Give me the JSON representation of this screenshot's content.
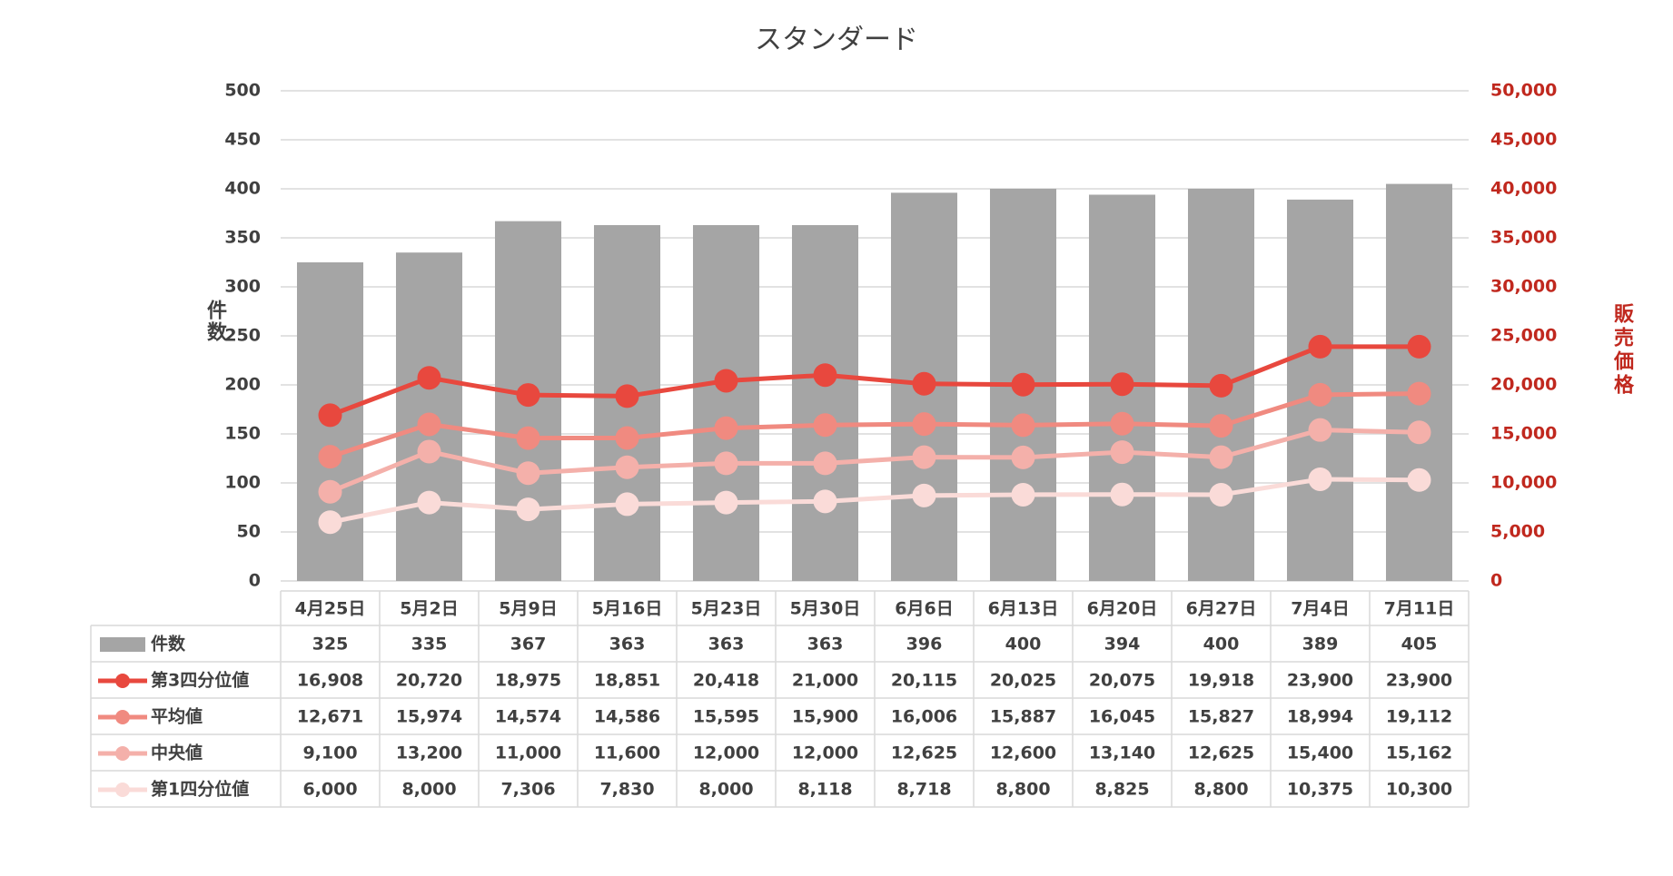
{
  "chart_data": {
    "type": "bar",
    "title": "スタンダード",
    "y_label": "件数",
    "y2_label": "販売価格",
    "categories": [
      "4月25日",
      "5月2日",
      "5月9日",
      "5月16日",
      "5月23日",
      "5月30日",
      "6月6日",
      "6月13日",
      "6月20日",
      "6月27日",
      "7月4日",
      "7月11日"
    ],
    "series": [
      {
        "name": "件数",
        "type": "bar",
        "color": "#a5a5a5",
        "values": [
          325,
          335,
          367,
          363,
          363,
          363,
          396,
          400,
          394,
          400,
          389,
          405
        ]
      },
      {
        "name": "第3四分位値",
        "type": "line",
        "axis": "y2",
        "color": "#e8483e",
        "values": [
          16908,
          20720,
          18975,
          18851,
          20418,
          21000,
          20115,
          20025,
          20075,
          19918,
          23900,
          23900
        ],
        "value_labels": [
          "16,908",
          "20,720",
          "18,975",
          "18,851",
          "20,418",
          "21,000",
          "20,115",
          "20,025",
          "20,075",
          "19,918",
          "23,900",
          "23,900"
        ]
      },
      {
        "name": "平均値",
        "type": "line",
        "axis": "y2",
        "color": "#f08a80",
        "values": [
          12671,
          15974,
          14574,
          14586,
          15595,
          15900,
          16006,
          15887,
          16045,
          15827,
          18994,
          19112
        ],
        "value_labels": [
          "12,671",
          "15,974",
          "14,574",
          "14,586",
          "15,595",
          "15,900",
          "16,006",
          "15,887",
          "16,045",
          "15,827",
          "18,994",
          "19,112"
        ]
      },
      {
        "name": "中央値",
        "type": "line",
        "axis": "y2",
        "color": "#f4b0aa",
        "values": [
          9100,
          13200,
          11000,
          11600,
          12000,
          12000,
          12625,
          12600,
          13140,
          12625,
          15400,
          15162
        ],
        "value_labels": [
          "9,100",
          "13,200",
          "11,000",
          "11,600",
          "12,000",
          "12,000",
          "12,625",
          "12,600",
          "13,140",
          "12,625",
          "15,400",
          "15,162"
        ]
      },
      {
        "name": "第1四分位値",
        "type": "line",
        "axis": "y2",
        "color": "#fadbd8",
        "values": [
          6000,
          8000,
          7306,
          7830,
          8000,
          8118,
          8718,
          8800,
          8825,
          8800,
          10375,
          10300
        ],
        "value_labels": [
          "6,000",
          "8,000",
          "7,306",
          "7,830",
          "8,000",
          "8,118",
          "8,718",
          "8,800",
          "8,825",
          "8,800",
          "10,375",
          "10,300"
        ]
      }
    ],
    "ylim": [
      0,
      500
    ],
    "yticks": [
      0,
      50,
      100,
      150,
      200,
      250,
      300,
      350,
      400,
      450,
      500
    ],
    "y2lim": [
      0,
      50000
    ],
    "y2ticks": [
      0,
      {
        "value": 5000,
        "label": "5,000"
      },
      {
        "value": 10000,
        "label": "10,000"
      },
      {
        "value": 15000,
        "label": "15,000"
      },
      {
        "value": 20000,
        "label": "20,000"
      },
      {
        "value": 25000,
        "label": "25,000"
      },
      {
        "value": 30000,
        "label": "30,000"
      },
      {
        "value": 35000,
        "label": "35,000"
      },
      {
        "value": 40000,
        "label": "40,000"
      },
      {
        "value": 45000,
        "label": "45,000"
      },
      {
        "value": 50000,
        "label": "50,000"
      }
    ],
    "y2_color": "#c0281e",
    "grid": true
  }
}
